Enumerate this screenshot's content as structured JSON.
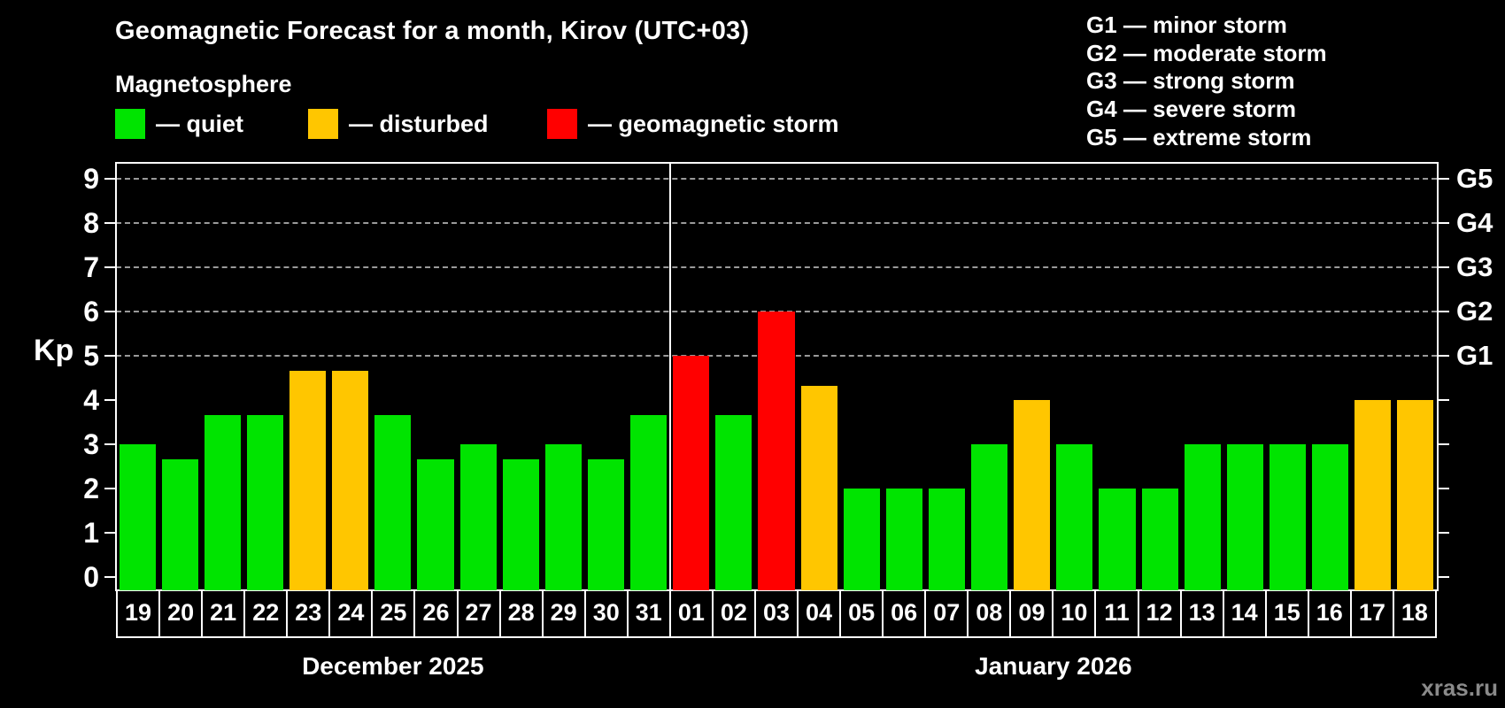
{
  "header": {
    "title": "Geomagnetic Forecast for a month, Kirov (UTC+03)",
    "subtitle": "Magnetosphere"
  },
  "legend": {
    "items": [
      {
        "label": "— quiet",
        "color": "#00e400"
      },
      {
        "label": "— disturbed",
        "color": "#ffc600"
      },
      {
        "label": "— geomagnetic storm",
        "color": "#ff0000"
      }
    ]
  },
  "g_scale_legend": {
    "items": [
      "G1 — minor storm",
      "G2 — moderate storm",
      "G3 — strong storm",
      "G4 — severe storm",
      "G5 — extreme storm"
    ]
  },
  "watermark": "xras.ru",
  "chart_data": {
    "type": "bar",
    "title": "Geomagnetic Forecast for a month, Kirov (UTC+03)",
    "ylabel": "Kp",
    "ylim": [
      0,
      9.7
    ],
    "yticks": [
      0,
      1,
      2,
      3,
      4,
      5,
      6,
      7,
      8,
      9
    ],
    "gridlines_at_kp": [
      5,
      6,
      7,
      8,
      9
    ],
    "grid": "dashed horizontal at storm levels only",
    "right_axis": [
      {
        "kp": 5,
        "label": "G1"
      },
      {
        "kp": 6,
        "label": "G2"
      },
      {
        "kp": 7,
        "label": "G3"
      },
      {
        "kp": 8,
        "label": "G4"
      },
      {
        "kp": 9,
        "label": "G5"
      }
    ],
    "colors": {
      "quiet": "#00e400",
      "disturbed": "#ffc600",
      "storm": "#ff0000"
    },
    "months": [
      {
        "label": "December 2025",
        "days": 13
      },
      {
        "label": "January 2026",
        "days": 18
      }
    ],
    "categories": [
      "19",
      "20",
      "21",
      "22",
      "23",
      "24",
      "25",
      "26",
      "27",
      "28",
      "29",
      "30",
      "31",
      "01",
      "02",
      "03",
      "04",
      "05",
      "06",
      "07",
      "08",
      "09",
      "10",
      "11",
      "12",
      "13",
      "14",
      "15",
      "16",
      "17",
      "18"
    ],
    "values": [
      3,
      2.67,
      3.67,
      3.67,
      4.67,
      4.67,
      3.67,
      2.67,
      3,
      2.67,
      3,
      2.67,
      3.67,
      5,
      3.67,
      6,
      4.33,
      2,
      2,
      2,
      3,
      4,
      3,
      2,
      2,
      3,
      3,
      3,
      3,
      4,
      4
    ],
    "statuses": [
      "quiet",
      "quiet",
      "quiet",
      "quiet",
      "disturbed",
      "disturbed",
      "quiet",
      "quiet",
      "quiet",
      "quiet",
      "quiet",
      "quiet",
      "quiet",
      "storm",
      "quiet",
      "storm",
      "disturbed",
      "quiet",
      "quiet",
      "quiet",
      "quiet",
      "disturbed",
      "quiet",
      "quiet",
      "quiet",
      "quiet",
      "quiet",
      "quiet",
      "quiet",
      "disturbed",
      "disturbed"
    ]
  }
}
